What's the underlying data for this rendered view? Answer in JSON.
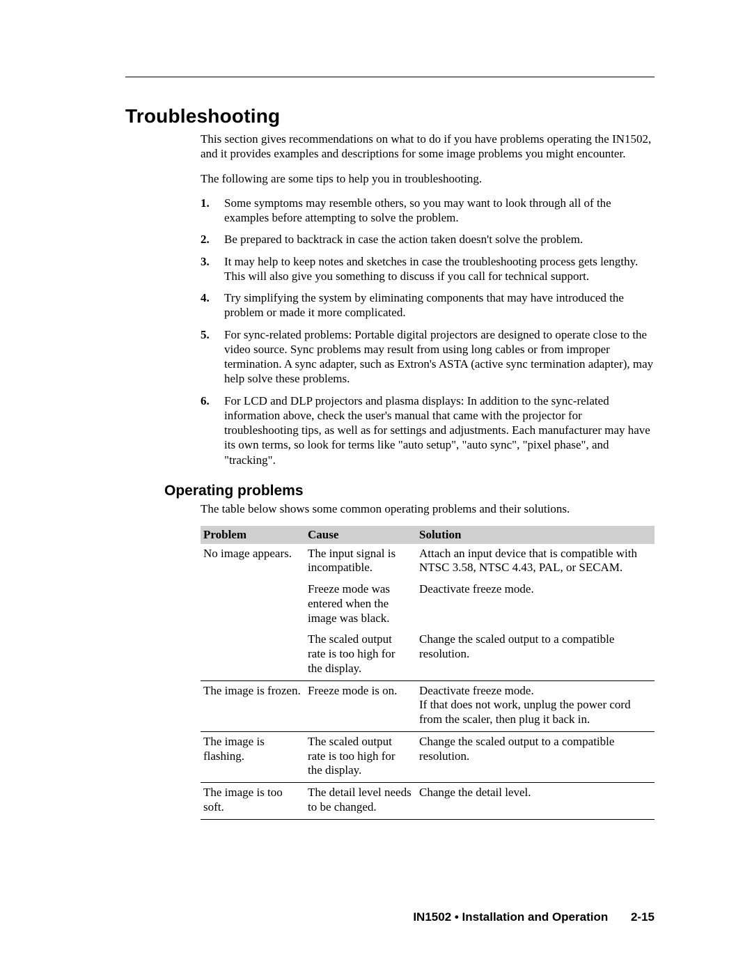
{
  "heading": "Troubleshooting",
  "intro1": "This section gives recommendations on what to do if you have problems operating the IN1502, and it provides examples and descriptions for some image problems you might encounter.",
  "intro2": "The following are some tips to help you in troubleshooting.",
  "tips": [
    "Some symptoms may resemble others, so you may want to look through all of the examples before attempting to solve the problem.",
    "Be prepared to backtrack in case the action taken doesn't solve the problem.",
    "It may help to keep notes and sketches in case the troubleshooting process gets lengthy.  This will also give you something to discuss if you call for technical support.",
    "Try simplifying the system by eliminating components that may have introduced the problem or made it more complicated.",
    "For sync-related problems:  Portable digital projectors are designed to operate close to the video source.  Sync problems may result from using long cables or from improper termination.  A sync adapter, such as Extron's ASTA (active sync termination adapter), may help solve these problems.",
    "For LCD and DLP projectors and plasma displays:  In addition to the sync-related information above, check the user's manual that came with the projector for troubleshooting tips, as well as for settings and adjustments.  Each manufacturer may have its own terms, so look for terms like \"auto setup\", \"auto sync\", \"pixel phase\", and \"tracking\"."
  ],
  "subheading": "Operating problems",
  "tableIntro": "The table below shows some common operating problems and their solutions.",
  "table": {
    "columns": [
      "Problem",
      "Cause",
      "Solution"
    ],
    "rows": [
      {
        "problem": "No image appears.",
        "cause": "The input signal is incompatible.",
        "solution": "Attach an input device that is compatible with NTSC 3.58, NTSC 4.43, PAL, or SECAM.",
        "groupEnd": false
      },
      {
        "problem": "",
        "cause": "Freeze mode was entered when the image was black.",
        "solution": "Deactivate freeze mode.",
        "groupEnd": false
      },
      {
        "problem": "",
        "cause": "The scaled output rate is too high for the display.",
        "solution": "Change the scaled output to a compatible resolution.",
        "groupEnd": true
      },
      {
        "problem": "The image is frozen.",
        "cause": "Freeze mode is on.",
        "solution": "Deactivate freeze mode.\nIf that does not work, unplug the power cord from the scaler, then plug it back in.",
        "groupEnd": true
      },
      {
        "problem": "The image is flashing.",
        "cause": "The scaled output rate is too high for the display.",
        "solution": "Change the scaled output to a compatible resolution.",
        "groupEnd": true
      },
      {
        "problem": "The image is too soft.",
        "cause": "The detail level needs to be changed.",
        "solution": "Change the detail level.",
        "groupEnd": true
      }
    ]
  },
  "footer": {
    "doc": "IN1502 • Installation and Operation",
    "page": "2-15"
  }
}
